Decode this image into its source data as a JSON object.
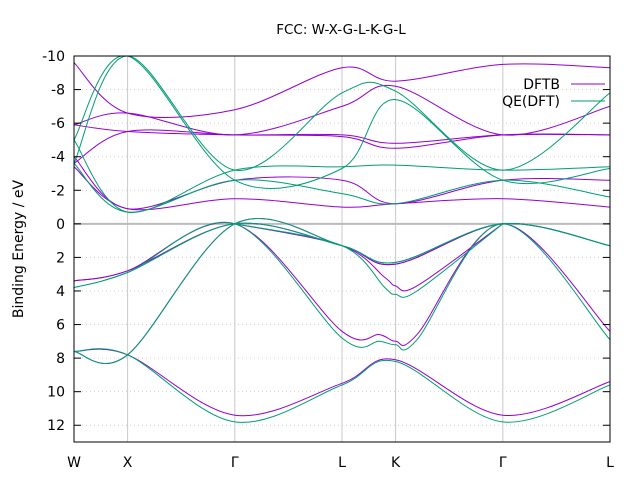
{
  "chart_data": {
    "type": "line",
    "title": "FCC: W-X-G-L-K-G-L",
    "xlabel": "",
    "ylabel": "Binding Energy / eV",
    "ylim": [
      12.998,
      -10
    ],
    "grid": true,
    "legend_position": "top-right",
    "colors": {
      "DFTB": "#9400d3",
      "QE(DFT)": "#009e73",
      "zero_line": "#bbbbbb"
    },
    "x_ticks": [
      {
        "label": "W",
        "x": 0
      },
      {
        "label": "X",
        "x": 1
      },
      {
        "label": "Γ",
        "x": 3
      },
      {
        "label": "L",
        "x": 5
      },
      {
        "label": "K",
        "x": 6
      },
      {
        "label": "Γ",
        "x": 8
      },
      {
        "label": "L",
        "x": 10
      }
    ],
    "y_ticks": [
      -10,
      -8,
      -6,
      -4,
      -2,
      0,
      2,
      4,
      6,
      8,
      10,
      12
    ],
    "legend": [
      {
        "name": "DFTB",
        "color": "#9400d3"
      },
      {
        "name": "QE(DFT)",
        "color": "#009e73"
      }
    ],
    "series": [
      {
        "name": "DFTB",
        "color": "#9400d3",
        "bands": [
          {
            "x": [
              0,
              1,
              3,
              5,
              6,
              8,
              10
            ],
            "y": [
              3.4,
              2.8,
              0,
              1.3,
              2.4,
              0,
              1.3
            ]
          },
          {
            "x": [
              0,
              1,
              3,
              5,
              6,
              8,
              10
            ],
            "y": [
              7.6,
              7.8,
              0,
              1.3,
              2.4,
              0,
              1.3
            ]
          },
          {
            "x": [
              0,
              1,
              3,
              5,
              5.7,
              6,
              6.4,
              8,
              10
            ],
            "y": [
              3.4,
              2.8,
              0,
              6.4,
              6.6,
              7.0,
              6.6,
              0,
              6.4
            ]
          },
          {
            "x": [
              0,
              1,
              3,
              5,
              6,
              8,
              10
            ],
            "y": [
              7.6,
              7.8,
              11.4,
              9.5,
              8.1,
              11.4,
              9.4
            ]
          },
          {
            "x": [
              3,
              5,
              5.8,
              6,
              6.4,
              8
            ],
            "y": [
              0,
              1.3,
              3.2,
              3.7,
              3.7,
              0
            ]
          },
          {
            "x": [
              0,
              1,
              3,
              5,
              6,
              8,
              10
            ],
            "y": [
              -3.4,
              -0.9,
              -1.5,
              -1.0,
              -1.2,
              -1.5,
              -1.0
            ]
          },
          {
            "x": [
              0,
              1,
              3,
              5,
              6,
              8,
              10
            ],
            "y": [
              -4.0,
              -0.9,
              -2.6,
              -2.6,
              -1.2,
              -2.6,
              -2.6
            ]
          },
          {
            "x": [
              0,
              1,
              3,
              5,
              6,
              8,
              10
            ],
            "y": [
              -5.9,
              -5.5,
              -5.3,
              -5.3,
              -4.8,
              -5.3,
              -5.3
            ]
          },
          {
            "x": [
              0,
              1,
              3,
              5,
              6,
              8,
              10
            ],
            "y": [
              -3.6,
              -5.5,
              -5.3,
              -5.2,
              -4.5,
              -5.3,
              -5.3
            ]
          },
          {
            "x": [
              0,
              1,
              3,
              5,
              6,
              8,
              10
            ],
            "y": [
              -5.9,
              -6.6,
              -5.3,
              -7.0,
              -8.2,
              -5.3,
              -7.0
            ]
          },
          {
            "x": [
              0,
              1,
              3,
              5,
              6,
              8,
              10
            ],
            "y": [
              -9.6,
              -6.6,
              -6.8,
              -9.3,
              -8.5,
              -9.5,
              -9.3
            ]
          }
        ]
      },
      {
        "name": "QE(DFT)",
        "color": "#009e73",
        "bands": [
          {
            "x": [
              0,
              1,
              3,
              5,
              6,
              8,
              10
            ],
            "y": [
              3.8,
              2.9,
              0,
              1.3,
              2.3,
              0,
              1.3
            ]
          },
          {
            "x": [
              0,
              1,
              3,
              5,
              6,
              8,
              10
            ],
            "y": [
              7.6,
              7.8,
              0,
              1.3,
              2.3,
              0,
              1.3
            ]
          },
          {
            "x": [
              0,
              1,
              3,
              5,
              5.7,
              6,
              6.4,
              8,
              10
            ],
            "y": [
              3.8,
              2.9,
              0,
              6.8,
              7.0,
              7.2,
              6.9,
              0,
              6.9
            ]
          },
          {
            "x": [
              0,
              1,
              3,
              5,
              6,
              8,
              10
            ],
            "y": [
              7.6,
              7.8,
              11.8,
              9.6,
              8.2,
              11.8,
              9.6
            ]
          },
          {
            "x": [
              3,
              5,
              5.8,
              6,
              6.4,
              8
            ],
            "y": [
              0,
              1.3,
              3.8,
              4.2,
              4.0,
              0
            ]
          },
          {
            "x": [
              0,
              1,
              3,
              5,
              6,
              8,
              10
            ],
            "y": [
              -3.6,
              -0.7,
              -2.6,
              -1.8,
              -1.2,
              -2.6,
              -1.6
            ]
          },
          {
            "x": [
              0,
              1,
              3,
              5,
              6,
              8,
              10
            ],
            "y": [
              -5.0,
              -0.7,
              -3.2,
              -3.4,
              -3.5,
              -3.2,
              -3.4
            ]
          },
          {
            "x": [
              0,
              1,
              3,
              5,
              6,
              8,
              10
            ],
            "y": [
              -3.6,
              -10.0,
              -3.2,
              -7.8,
              -7.9,
              -3.2,
              -7.8
            ]
          },
          {
            "x": [
              0,
              1,
              3,
              5,
              6,
              8,
              10
            ],
            "y": [
              -5.0,
              -10.0,
              -2.6,
              -3.3,
              -7.4,
              -2.6,
              -3.3
            ]
          }
        ]
      }
    ]
  }
}
